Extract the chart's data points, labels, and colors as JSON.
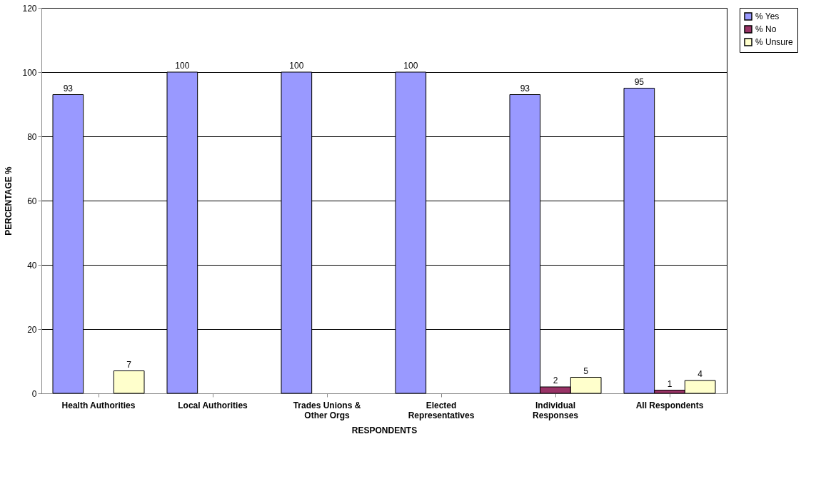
{
  "chart_data": {
    "type": "bar",
    "xlabel": "RESPONDENTS",
    "ylabel": "PERCENTAGE %",
    "categories": [
      "Health Authorities",
      "Local Authorities",
      "Trades Unions &\nOther Orgs",
      "Elected\nRepresentatives",
      "Individual\nResponses",
      "All Respondents"
    ],
    "series": [
      {
        "name": "% Yes",
        "color": "#9999ff",
        "values": [
          93,
          100,
          100,
          100,
          93,
          95
        ]
      },
      {
        "name": "% No",
        "color": "#993366",
        "values": [
          null,
          null,
          null,
          null,
          2,
          1
        ]
      },
      {
        "name": "% Unsure",
        "color": "#ffffcc",
        "values": [
          7,
          null,
          null,
          null,
          5,
          4
        ]
      }
    ],
    "ylim": [
      0,
      120
    ],
    "yticks": [
      0,
      20,
      40,
      60,
      80,
      100,
      120
    ],
    "grid": "y",
    "legend": "right",
    "data_labels": true
  }
}
